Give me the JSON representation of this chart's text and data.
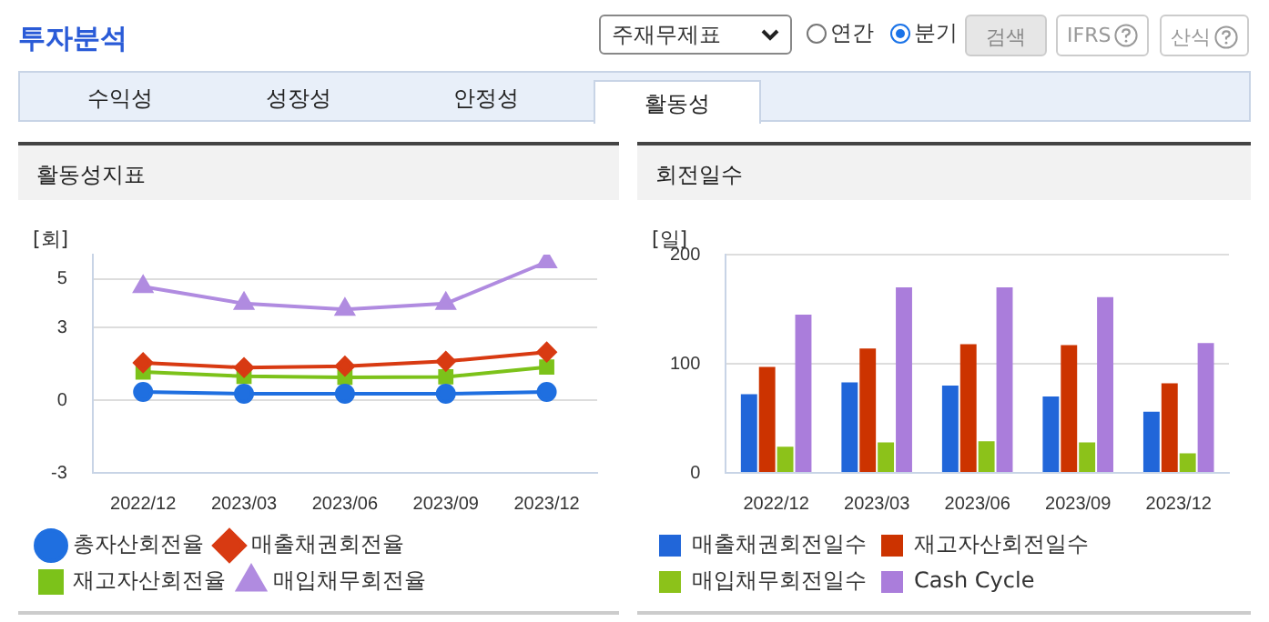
{
  "chart_data": [
    {
      "type": "other",
      "title": "투자분석",
      "annotations": [
        "주재무제표",
        "연간",
        "분기",
        "검색",
        "IFRS",
        "산식",
        "수익성",
        "성장성",
        "안정성",
        "활동성"
      ]
    },
    {
      "type": "line",
      "title": "활동성지표",
      "ylabel": "[회]",
      "categories": [
        "2022/12",
        "2023/03",
        "2023/06",
        "2023/09",
        "2023/12"
      ],
      "ylim": [
        -3,
        6
      ],
      "yticks": [
        -3,
        0,
        3,
        5
      ],
      "grid": "y",
      "legend": "bottom",
      "series": [
        {
          "name": "총자산회전율",
          "color": "#1f6fe0",
          "marker": "circle",
          "values": [
            0.34,
            0.26,
            0.26,
            0.26,
            0.34
          ]
        },
        {
          "name": "매출채권회전율",
          "color": "#d83a12",
          "marker": "diamond",
          "values": [
            1.54,
            1.34,
            1.4,
            1.6,
            1.98
          ]
        },
        {
          "name": "재고자산회전율",
          "color": "#7cc21a",
          "marker": "square",
          "values": [
            1.16,
            0.98,
            0.94,
            0.96,
            1.36
          ]
        },
        {
          "name": "매입채무회전율",
          "color": "#b08be0",
          "marker": "triangle",
          "values": [
            4.68,
            3.98,
            3.74,
            3.98,
            5.7
          ]
        }
      ]
    },
    {
      "type": "bar",
      "title": "회전일수",
      "ylabel": "[일]",
      "categories": [
        "2022/12",
        "2023/03",
        "2023/06",
        "2023/09",
        "2023/12"
      ],
      "ylim": [
        0,
        200
      ],
      "yticks": [
        0,
        100,
        200
      ],
      "grid": "y",
      "legend": "bottom",
      "series": [
        {
          "name": "매출채권회전일수",
          "color": "#2166d9",
          "values": [
            72,
            83,
            80,
            70,
            56
          ]
        },
        {
          "name": "재고자산회전일수",
          "color": "#cc3300",
          "values": [
            97,
            114,
            118,
            117,
            82
          ]
        },
        {
          "name": "매입채무회전일수",
          "color": "#8cc21a",
          "values": [
            24,
            28,
            29,
            28,
            18
          ]
        },
        {
          "name": "Cash Cycle",
          "color": "#aa7ddb",
          "values": [
            145,
            170,
            170,
            161,
            119
          ]
        }
      ]
    }
  ]
}
